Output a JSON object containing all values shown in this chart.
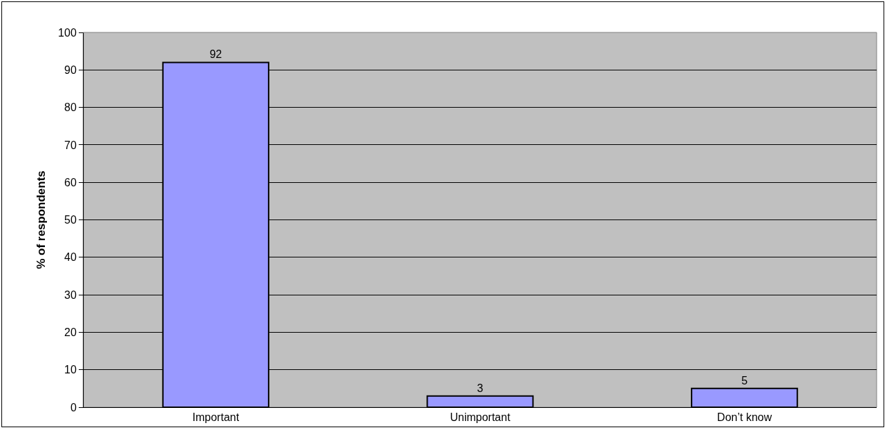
{
  "chart_data": {
    "type": "bar",
    "ylabel": "% of respondents",
    "categories": [
      "Important",
      "Unimportant",
      "Don’t know"
    ],
    "values": [
      92,
      3,
      5
    ],
    "color": "#9999ff",
    "ylim": [
      0,
      100
    ],
    "yticks": [
      0,
      10,
      20,
      30,
      40,
      50,
      60,
      70,
      80,
      90,
      100
    ],
    "grid": "y",
    "data_labels": true
  }
}
